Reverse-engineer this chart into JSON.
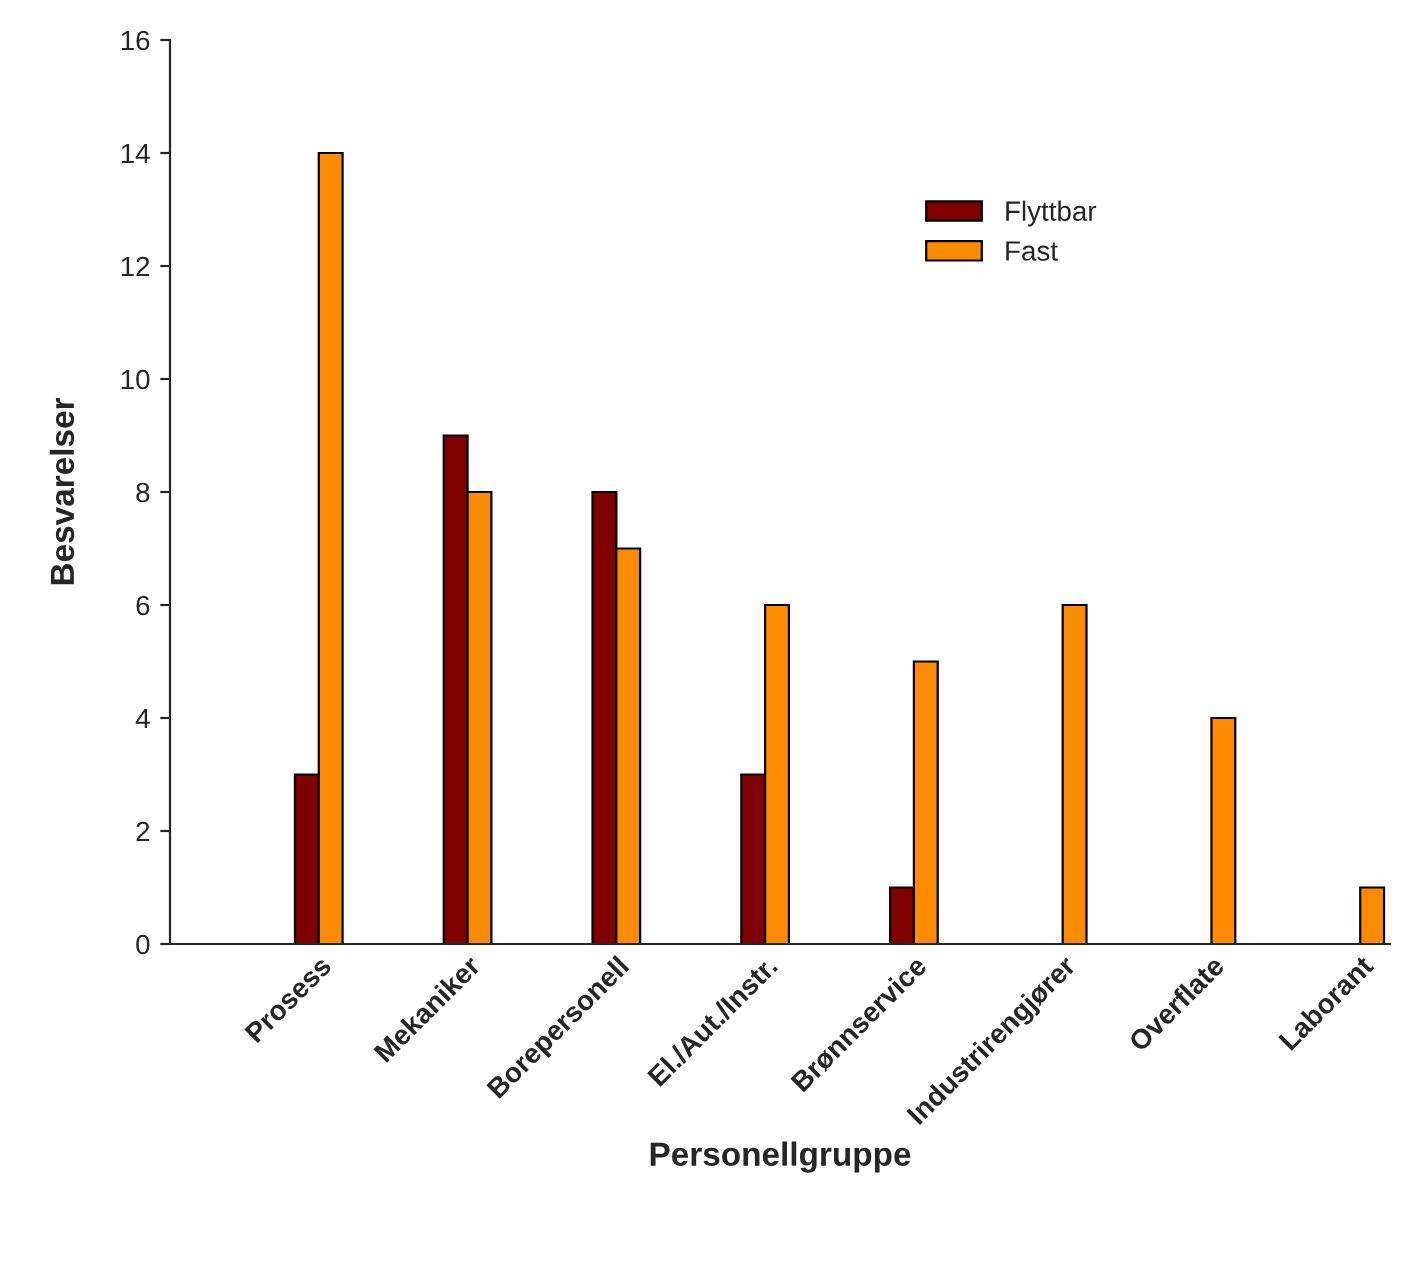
{
  "chart_data": {
    "type": "bar",
    "xlabel": "Personellgruppe",
    "ylabel": "Besvarelser",
    "categories": [
      "Prosess",
      "Mekaniker",
      "Borepersonell",
      "El./Aut./Instr.",
      "Brønnservice",
      "Industrirengjører",
      "Overflate",
      "Laborant"
    ],
    "series": [
      {
        "name": "Flyttbar",
        "color": "#800000",
        "values": [
          3,
          9,
          8,
          3,
          1,
          null,
          null,
          null
        ]
      },
      {
        "name": "Fast",
        "color": "#ff8c00",
        "values": [
          14,
          8,
          7,
          6,
          5,
          6,
          4,
          1
        ]
      }
    ],
    "ylim": [
      0,
      16
    ],
    "yticks": [
      0,
      2,
      4,
      6,
      8,
      10,
      12,
      14,
      16
    ],
    "grid": false,
    "legend": "top right"
  }
}
